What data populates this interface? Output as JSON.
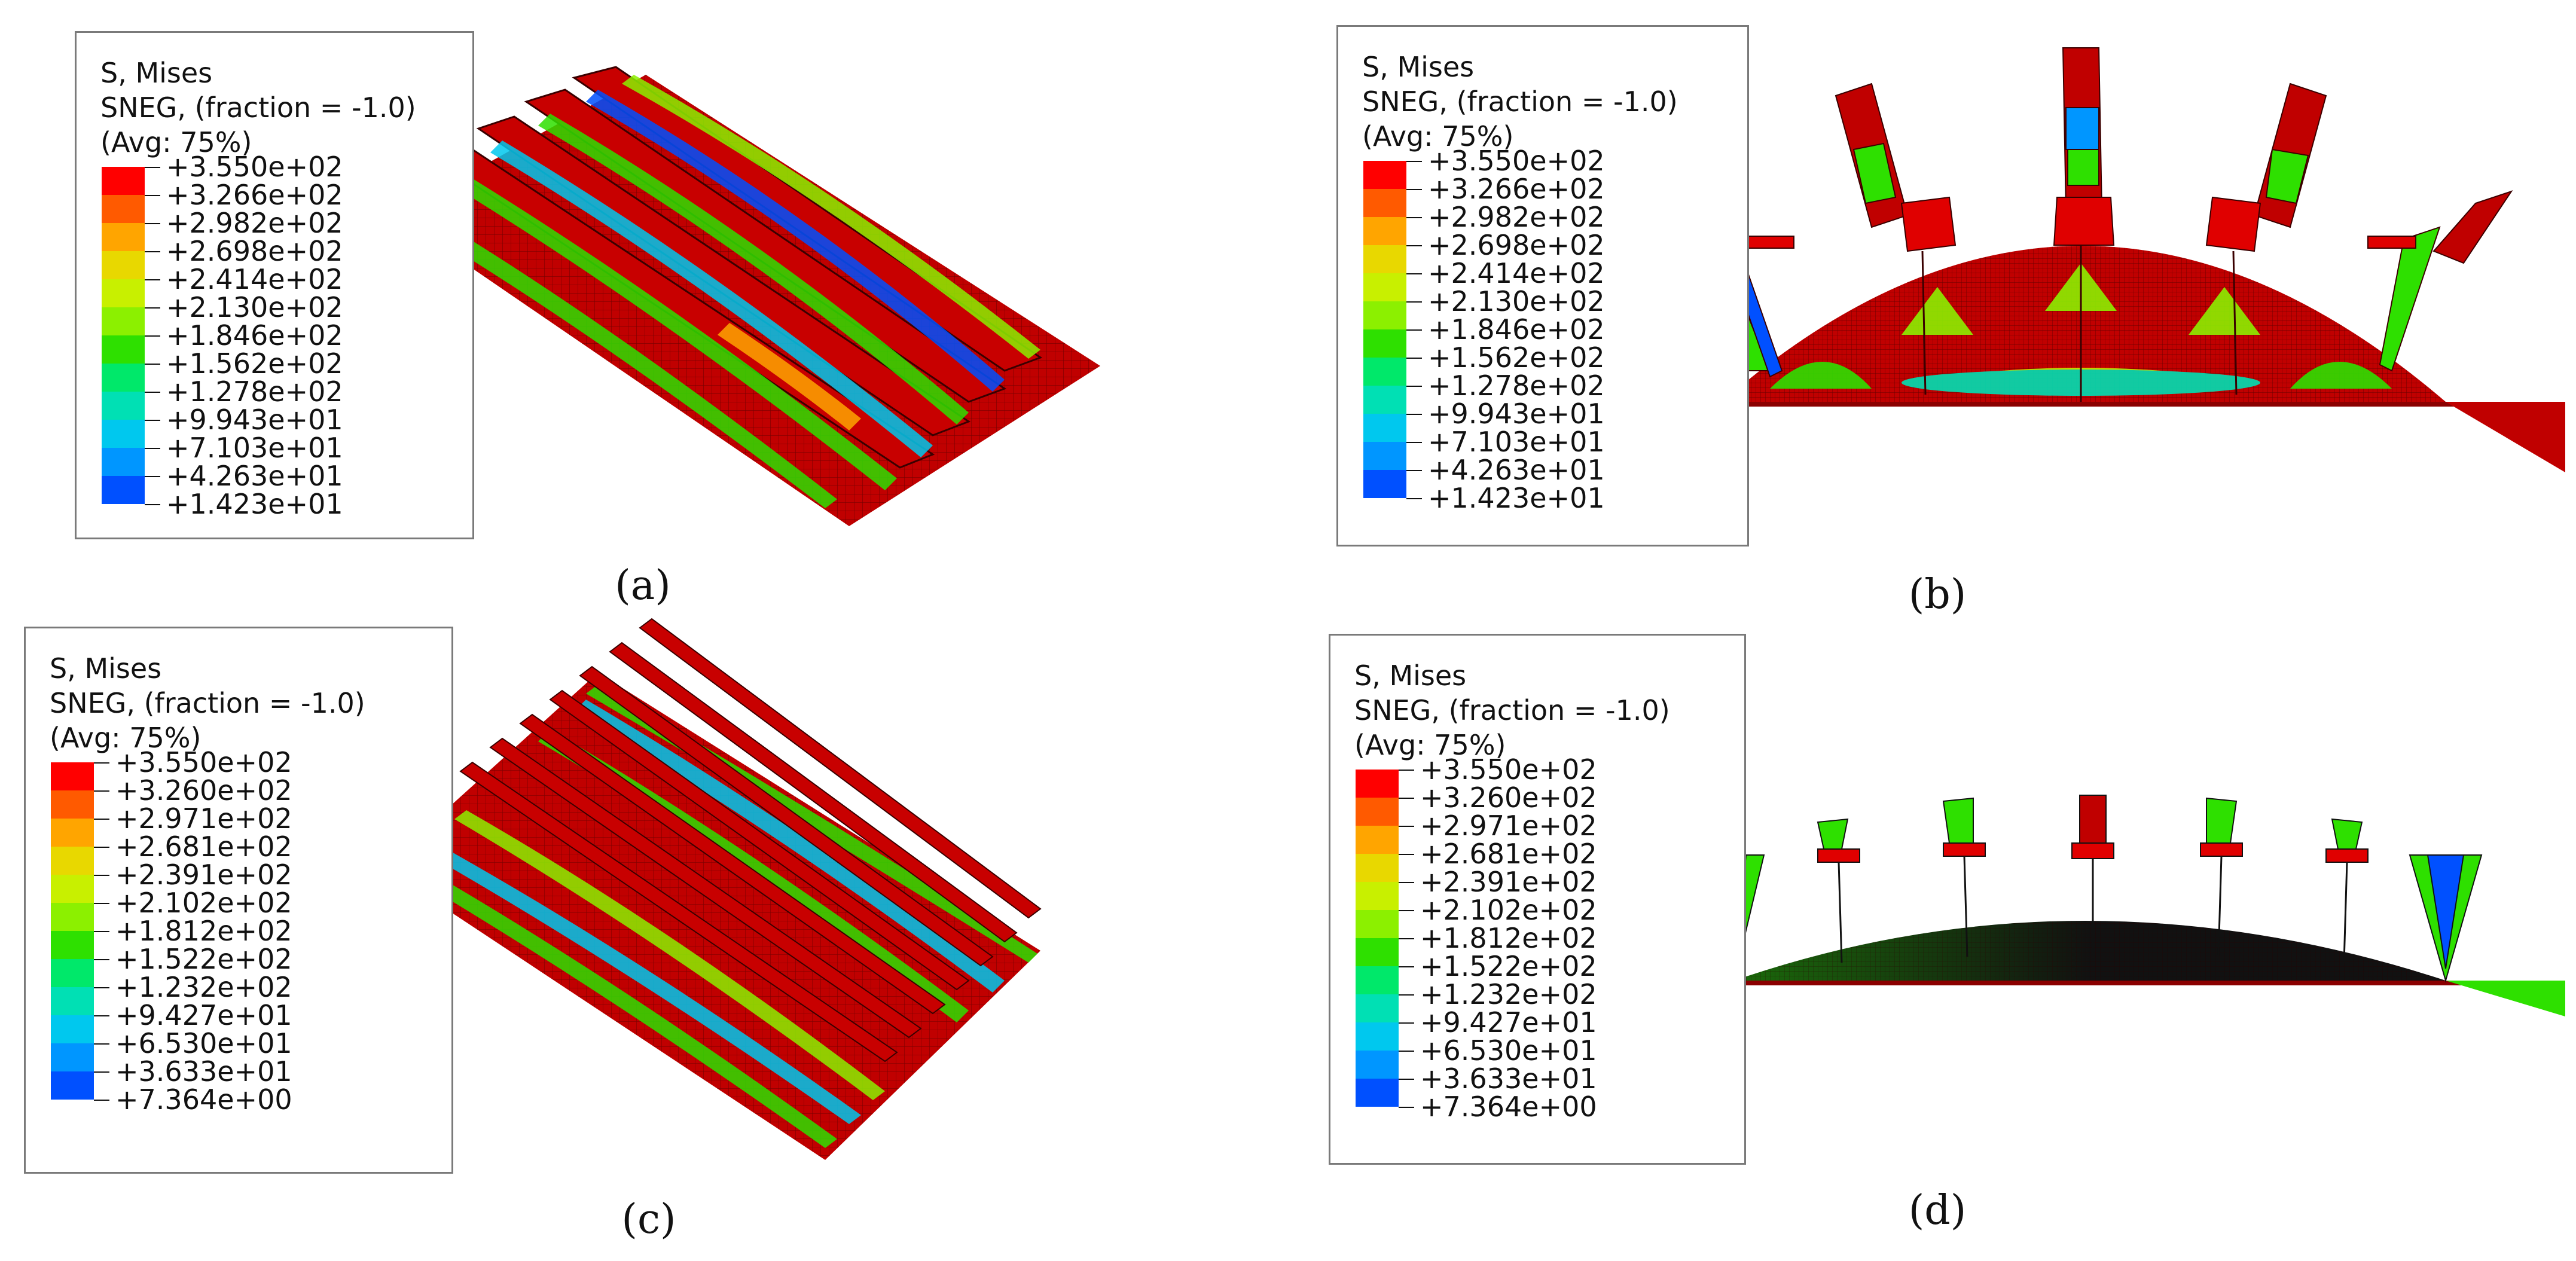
{
  "panels": [
    {
      "caption": "(a)",
      "legend": {
        "title": "S, Mises",
        "subtitle": "SNEG, (fraction = -1.0)",
        "avg": "(Avg: 75%)",
        "values": [
          "+3.550e+02",
          "+3.266e+02",
          "+2.982e+02",
          "+2.698e+02",
          "+2.414e+02",
          "+2.130e+02",
          "+1.846e+02",
          "+1.562e+02",
          "+1.278e+02",
          "+9.943e+01",
          "+7.103e+01",
          "+4.263e+01",
          "+1.423e+01"
        ]
      }
    },
    {
      "caption": "(b)",
      "legend": {
        "title": "S, Mises",
        "subtitle": "SNEG, (fraction = -1.0)",
        "avg": "(Avg: 75%)",
        "values": [
          "+3.550e+02",
          "+3.266e+02",
          "+2.982e+02",
          "+2.698e+02",
          "+2.414e+02",
          "+2.130e+02",
          "+1.846e+02",
          "+1.562e+02",
          "+1.278e+02",
          "+9.943e+01",
          "+7.103e+01",
          "+4.263e+01",
          "+1.423e+01"
        ]
      }
    },
    {
      "caption": "(c)",
      "legend": {
        "title": "S, Mises",
        "subtitle": "SNEG, (fraction = -1.0)",
        "avg": "(Avg: 75%)",
        "values": [
          "+3.550e+02",
          "+3.260e+02",
          "+2.971e+02",
          "+2.681e+02",
          "+2.391e+02",
          "+2.102e+02",
          "+1.812e+02",
          "+1.522e+02",
          "+1.232e+02",
          "+9.427e+01",
          "+6.530e+01",
          "+3.633e+01",
          "+7.364e+00"
        ]
      }
    },
    {
      "caption": "(d)",
      "legend": {
        "title": "S, Mises",
        "subtitle": "SNEG, (fraction = -1.0)",
        "avg": "(Avg: 75%)",
        "values": [
          "+3.550e+02",
          "+3.260e+02",
          "+2.971e+02",
          "+2.681e+02",
          "+2.391e+02",
          "+2.102e+02",
          "+1.812e+02",
          "+1.522e+02",
          "+1.232e+02",
          "+9.427e+01",
          "+6.530e+01",
          "+3.633e+01",
          "+7.364e+00"
        ]
      }
    }
  ],
  "colormap": [
    "#ff0000",
    "#ff5a00",
    "#ffa500",
    "#e8d800",
    "#c8f000",
    "#8cf000",
    "#2ee000",
    "#00e86a",
    "#00e0b4",
    "#00c8ee",
    "#0096ff",
    "#0050ff",
    "#0000ff"
  ],
  "colors": {
    "stress_high": "#c00000",
    "stress_mid": "#2ee000",
    "stress_low": "#0050ff",
    "mesh": "#3a0000"
  }
}
